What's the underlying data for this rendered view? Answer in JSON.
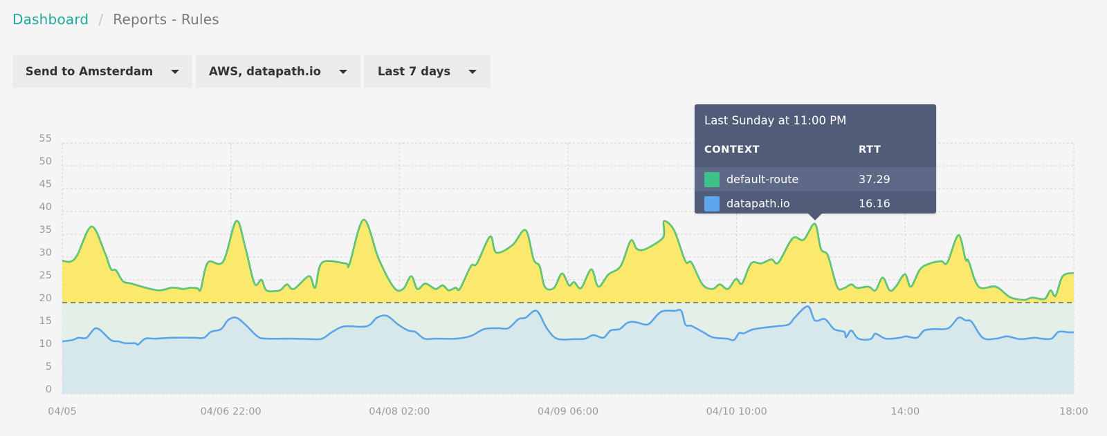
{
  "breadcrumb": {
    "home": "Dashboard",
    "separator": "/",
    "current": "Reports - Rules"
  },
  "filters": [
    {
      "label": "Send to Amsterdam",
      "icon": "caret-down-icon"
    },
    {
      "label": "AWS, datapath.io",
      "icon": "caret-down-icon"
    },
    {
      "label": "Last 7 days",
      "icon": "caret-down-icon"
    }
  ],
  "tooltip": {
    "title": "Last Sunday at 11:00 PM",
    "columns": [
      "CONTEXT",
      "RTT"
    ],
    "rows": [
      {
        "name": "default-route",
        "value": "37.29",
        "color": "#3ec28a"
      },
      {
        "name": "datapath.io",
        "value": "16.16",
        "color": "#5ba6ec"
      }
    ]
  },
  "colors": {
    "default_route_line": "#3dba7a",
    "default_route_fill": "#fbe96e",
    "datapath_line": "#5aa5ea",
    "datapath_fill": "#d6e8ec",
    "threshold_band": "#e4efe8",
    "threshold_line": "#666666",
    "grid": "#d0d0d0",
    "accent": "#1aa99a"
  },
  "chart_data": {
    "type": "area",
    "title": "",
    "xlabel": "",
    "ylabel": "RTT",
    "ylim": [
      0,
      55
    ],
    "yticks": [
      0,
      5,
      10,
      15,
      20,
      25,
      30,
      35,
      40,
      45,
      50,
      55
    ],
    "xticks": [
      "04/05",
      "04/06 22:00",
      "04/08 02:00",
      "04/09 06:00",
      "04/10 10:00",
      "14:00",
      "18:00"
    ],
    "grid": true,
    "threshold": 20,
    "x_note": "x values are normalized position 0..1 across the time range",
    "series": [
      {
        "name": "default-route",
        "points": [
          [
            0.0,
            29.2
          ],
          [
            0.008,
            29.0
          ],
          [
            0.015,
            30.5
          ],
          [
            0.029,
            36.7
          ],
          [
            0.042,
            31.0
          ],
          [
            0.048,
            27.4
          ],
          [
            0.053,
            27.1
          ],
          [
            0.06,
            24.7
          ],
          [
            0.068,
            24.2
          ],
          [
            0.082,
            23.3
          ],
          [
            0.096,
            22.7
          ],
          [
            0.109,
            23.3
          ],
          [
            0.12,
            23.0
          ],
          [
            0.127,
            23.3
          ],
          [
            0.134,
            23.1
          ],
          [
            0.137,
            23.0
          ],
          [
            0.144,
            28.8
          ],
          [
            0.159,
            29.0
          ],
          [
            0.172,
            37.9
          ],
          [
            0.181,
            32.1
          ],
          [
            0.19,
            24.2
          ],
          [
            0.197,
            25.0
          ],
          [
            0.202,
            22.7
          ],
          [
            0.215,
            22.7
          ],
          [
            0.222,
            24.0
          ],
          [
            0.229,
            23.0
          ],
          [
            0.244,
            25.8
          ],
          [
            0.25,
            23.3
          ],
          [
            0.257,
            28.8
          ],
          [
            0.28,
            28.6
          ],
          [
            0.284,
            28.5
          ],
          [
            0.298,
            38.2
          ],
          [
            0.313,
            29.5
          ],
          [
            0.328,
            23.3
          ],
          [
            0.337,
            23.0
          ],
          [
            0.345,
            25.8
          ],
          [
            0.351,
            23.0
          ],
          [
            0.359,
            24.2
          ],
          [
            0.369,
            23.0
          ],
          [
            0.376,
            23.8
          ],
          [
            0.382,
            22.7
          ],
          [
            0.389,
            23.3
          ],
          [
            0.393,
            23.0
          ],
          [
            0.404,
            28.0
          ],
          [
            0.41,
            28.6
          ],
          [
            0.423,
            34.5
          ],
          [
            0.429,
            31.0
          ],
          [
            0.445,
            32.6
          ],
          [
            0.458,
            35.9
          ],
          [
            0.466,
            29.5
          ],
          [
            0.472,
            28.0
          ],
          [
            0.477,
            23.5
          ],
          [
            0.486,
            23.2
          ],
          [
            0.494,
            26.4
          ],
          [
            0.501,
            23.8
          ],
          [
            0.506,
            24.5
          ],
          [
            0.513,
            23.2
          ],
          [
            0.523,
            27.3
          ],
          [
            0.53,
            23.5
          ],
          [
            0.54,
            26.2
          ],
          [
            0.552,
            28.0
          ],
          [
            0.562,
            33.6
          ],
          [
            0.568,
            31.8
          ],
          [
            0.576,
            31.7
          ],
          [
            0.592,
            33.8
          ],
          [
            0.595,
            35.2
          ],
          [
            0.595,
            37.9
          ],
          [
            0.605,
            35.8
          ],
          [
            0.616,
            29.1
          ],
          [
            0.622,
            28.8
          ],
          [
            0.633,
            24.0
          ],
          [
            0.643,
            23.0
          ],
          [
            0.65,
            24.0
          ],
          [
            0.658,
            23.0
          ],
          [
            0.666,
            25.2
          ],
          [
            0.672,
            24.2
          ],
          [
            0.681,
            28.6
          ],
          [
            0.691,
            28.6
          ],
          [
            0.701,
            29.5
          ],
          [
            0.708,
            28.8
          ],
          [
            0.722,
            34.1
          ],
          [
            0.733,
            33.8
          ],
          [
            0.744,
            37.3
          ],
          [
            0.75,
            31.8
          ],
          [
            0.757,
            30.3
          ],
          [
            0.766,
            23.5
          ],
          [
            0.773,
            23.2
          ],
          [
            0.78,
            24.0
          ],
          [
            0.786,
            23.2
          ],
          [
            0.797,
            23.5
          ],
          [
            0.804,
            22.7
          ],
          [
            0.811,
            25.5
          ],
          [
            0.818,
            22.7
          ],
          [
            0.824,
            23.5
          ],
          [
            0.833,
            26.2
          ],
          [
            0.839,
            23.5
          ],
          [
            0.848,
            27.3
          ],
          [
            0.858,
            28.6
          ],
          [
            0.869,
            29.1
          ],
          [
            0.875,
            28.8
          ],
          [
            0.886,
            34.8
          ],
          [
            0.893,
            29.5
          ],
          [
            0.896,
            29.1
          ],
          [
            0.906,
            23.5
          ],
          [
            0.923,
            23.5
          ],
          [
            0.937,
            21.2
          ],
          [
            0.951,
            20.6
          ],
          [
            0.959,
            21.1
          ],
          [
            0.971,
            20.8
          ],
          [
            0.977,
            22.7
          ],
          [
            0.982,
            21.5
          ],
          [
            0.989,
            25.8
          ],
          [
            1.0,
            26.5
          ]
        ]
      },
      {
        "name": "datapath.io",
        "points": [
          [
            0.0,
            11.5
          ],
          [
            0.01,
            11.8
          ],
          [
            0.016,
            12.3
          ],
          [
            0.024,
            12.3
          ],
          [
            0.034,
            14.4
          ],
          [
            0.048,
            11.8
          ],
          [
            0.056,
            11.5
          ],
          [
            0.062,
            11.1
          ],
          [
            0.072,
            11.1
          ],
          [
            0.075,
            10.8
          ],
          [
            0.082,
            12.1
          ],
          [
            0.092,
            12.1
          ],
          [
            0.109,
            12.3
          ],
          [
            0.13,
            12.3
          ],
          [
            0.14,
            12.3
          ],
          [
            0.147,
            13.6
          ],
          [
            0.157,
            14.2
          ],
          [
            0.164,
            16.2
          ],
          [
            0.172,
            16.7
          ],
          [
            0.181,
            15.2
          ],
          [
            0.193,
            12.6
          ],
          [
            0.202,
            12.1
          ],
          [
            0.226,
            12.1
          ],
          [
            0.246,
            12.0
          ],
          [
            0.257,
            12.1
          ],
          [
            0.267,
            13.6
          ],
          [
            0.279,
            14.8
          ],
          [
            0.301,
            14.8
          ],
          [
            0.311,
            16.7
          ],
          [
            0.321,
            17.1
          ],
          [
            0.332,
            15.2
          ],
          [
            0.342,
            13.9
          ],
          [
            0.349,
            13.6
          ],
          [
            0.358,
            12.1
          ],
          [
            0.369,
            12.1
          ],
          [
            0.39,
            12.1
          ],
          [
            0.404,
            12.7
          ],
          [
            0.417,
            14.2
          ],
          [
            0.431,
            14.4
          ],
          [
            0.441,
            14.4
          ],
          [
            0.451,
            16.4
          ],
          [
            0.458,
            16.7
          ],
          [
            0.469,
            18.2
          ],
          [
            0.479,
            14.4
          ],
          [
            0.489,
            12.1
          ],
          [
            0.506,
            12.0
          ],
          [
            0.517,
            12.1
          ],
          [
            0.525,
            12.9
          ],
          [
            0.535,
            12.3
          ],
          [
            0.542,
            13.9
          ],
          [
            0.551,
            14.2
          ],
          [
            0.558,
            15.5
          ],
          [
            0.564,
            15.8
          ],
          [
            0.571,
            15.5
          ],
          [
            0.576,
            15.2
          ],
          [
            0.581,
            15.5
          ],
          [
            0.592,
            18.0
          ],
          [
            0.605,
            18.2
          ],
          [
            0.612,
            18.2
          ],
          [
            0.616,
            15.2
          ],
          [
            0.622,
            14.9
          ],
          [
            0.633,
            13.6
          ],
          [
            0.643,
            12.4
          ],
          [
            0.657,
            12.1
          ],
          [
            0.664,
            11.8
          ],
          [
            0.669,
            13.3
          ],
          [
            0.674,
            13.3
          ],
          [
            0.684,
            14.2
          ],
          [
            0.705,
            14.8
          ],
          [
            0.718,
            15.2
          ],
          [
            0.724,
            16.7
          ],
          [
            0.737,
            19.2
          ],
          [
            0.744,
            16.1
          ],
          [
            0.754,
            16.4
          ],
          [
            0.763,
            14.2
          ],
          [
            0.773,
            13.6
          ],
          [
            0.775,
            12.4
          ],
          [
            0.78,
            13.9
          ],
          [
            0.787,
            12.1
          ],
          [
            0.799,
            12.0
          ],
          [
            0.804,
            13.2
          ],
          [
            0.814,
            12.1
          ],
          [
            0.828,
            12.3
          ],
          [
            0.834,
            12.6
          ],
          [
            0.845,
            12.3
          ],
          [
            0.852,
            13.9
          ],
          [
            0.862,
            14.2
          ],
          [
            0.876,
            14.4
          ],
          [
            0.886,
            16.7
          ],
          [
            0.893,
            16.1
          ],
          [
            0.899,
            15.8
          ],
          [
            0.91,
            12.3
          ],
          [
            0.923,
            12.1
          ],
          [
            0.934,
            12.6
          ],
          [
            0.947,
            12.0
          ],
          [
            0.961,
            12.3
          ],
          [
            0.968,
            12.1
          ],
          [
            0.978,
            12.1
          ],
          [
            0.985,
            13.6
          ],
          [
            0.995,
            13.5
          ],
          [
            1.0,
            13.5
          ]
        ]
      }
    ],
    "hover": {
      "x": 0.744,
      "label": "Last Sunday at 11:00 PM",
      "default-route": 37.29,
      "datapath.io": 16.16
    }
  }
}
